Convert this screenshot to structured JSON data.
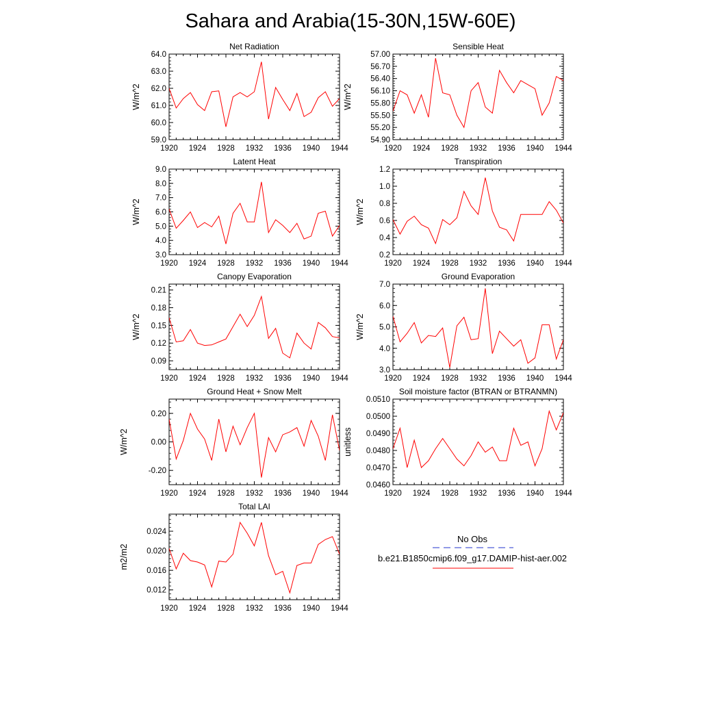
{
  "page": {
    "title": "Sahara and Arabia(15-30N,15W-60E)"
  },
  "chart_data": [
    {
      "type": "line",
      "title": "Net Radiation",
      "ylabel": "W/m^2",
      "xlabel": "",
      "xlim": [
        1920,
        1944
      ],
      "ylim": [
        59.0,
        64.0
      ],
      "xticks": [
        1920,
        1924,
        1928,
        1932,
        1936,
        1940,
        1944
      ],
      "yticks": [
        59.0,
        60.0,
        61.0,
        62.0,
        63.0,
        64.0
      ],
      "ytick_labels": [
        "59.0",
        "60.0",
        "61.0",
        "62.0",
        "63.0",
        "64.0"
      ],
      "grid": false,
      "x": [
        1920,
        1921,
        1922,
        1923,
        1924,
        1925,
        1926,
        1927,
        1928,
        1929,
        1930,
        1931,
        1932,
        1933,
        1934,
        1935,
        1936,
        1937,
        1938,
        1939,
        1940,
        1941,
        1942,
        1943,
        1944
      ],
      "series": [
        {
          "color": "#ff0000",
          "values": [
            62.0,
            60.85,
            61.4,
            61.75,
            61.05,
            60.7,
            61.8,
            61.85,
            59.75,
            61.5,
            61.75,
            61.5,
            61.8,
            63.55,
            60.2,
            62.05,
            61.35,
            60.7,
            61.7,
            60.35,
            60.6,
            61.45,
            61.8,
            60.95,
            61.4
          ]
        }
      ]
    },
    {
      "type": "line",
      "title": "Sensible Heat",
      "ylabel": "W/m^2",
      "xlabel": "",
      "xlim": [
        1920,
        1944
      ],
      "ylim": [
        54.9,
        57.0
      ],
      "xticks": [
        1920,
        1924,
        1928,
        1932,
        1936,
        1940,
        1944
      ],
      "yticks": [
        54.9,
        55.2,
        55.5,
        55.8,
        56.1,
        56.4,
        56.7,
        57.0
      ],
      "ytick_labels": [
        "54.90",
        "55.20",
        "55.50",
        "55.80",
        "56.10",
        "56.40",
        "56.70",
        "57.00"
      ],
      "grid": false,
      "x": [
        1920,
        1921,
        1922,
        1923,
        1924,
        1925,
        1926,
        1927,
        1928,
        1929,
        1930,
        1931,
        1932,
        1933,
        1934,
        1935,
        1936,
        1937,
        1938,
        1939,
        1940,
        1941,
        1942,
        1943,
        1944
      ],
      "series": [
        {
          "color": "#ff0000",
          "values": [
            55.6,
            56.1,
            56.0,
            55.55,
            56.0,
            55.45,
            56.9,
            56.05,
            56.0,
            55.5,
            55.2,
            56.1,
            56.3,
            55.7,
            55.55,
            56.6,
            56.3,
            56.05,
            56.35,
            56.25,
            56.15,
            55.5,
            55.8,
            56.45,
            56.35
          ]
        }
      ]
    },
    {
      "type": "line",
      "title": "Latent Heat",
      "ylabel": "W/m^2",
      "xlabel": "",
      "xlim": [
        1920,
        1944
      ],
      "ylim": [
        3.0,
        9.0
      ],
      "xticks": [
        1920,
        1924,
        1928,
        1932,
        1936,
        1940,
        1944
      ],
      "yticks": [
        3.0,
        4.0,
        5.0,
        6.0,
        7.0,
        8.0,
        9.0
      ],
      "ytick_labels": [
        "3.0",
        "4.0",
        "5.0",
        "6.0",
        "7.0",
        "8.0",
        "9.0"
      ],
      "grid": false,
      "x": [
        1920,
        1921,
        1922,
        1923,
        1924,
        1925,
        1926,
        1927,
        1928,
        1929,
        1930,
        1931,
        1932,
        1933,
        1934,
        1935,
        1936,
        1937,
        1938,
        1939,
        1940,
        1941,
        1942,
        1943,
        1944
      ],
      "series": [
        {
          "color": "#ff0000",
          "values": [
            6.2,
            4.85,
            5.4,
            6.0,
            4.9,
            5.25,
            4.95,
            5.7,
            3.75,
            5.9,
            6.6,
            5.3,
            5.3,
            8.1,
            4.55,
            5.45,
            5.05,
            4.55,
            5.2,
            4.1,
            4.3,
            5.9,
            6.05,
            4.3,
            5.05
          ]
        }
      ]
    },
    {
      "type": "line",
      "title": "Transpiration",
      "ylabel": "W/m^2",
      "xlabel": "",
      "xlim": [
        1920,
        1944
      ],
      "ylim": [
        0.2,
        1.2
      ],
      "xticks": [
        1920,
        1924,
        1928,
        1932,
        1936,
        1940,
        1944
      ],
      "yticks": [
        0.2,
        0.4,
        0.6,
        0.8,
        1.0,
        1.2
      ],
      "ytick_labels": [
        "0.2",
        "0.4",
        "0.6",
        "0.8",
        "1.0",
        "1.2"
      ],
      "grid": false,
      "x": [
        1920,
        1921,
        1922,
        1923,
        1924,
        1925,
        1926,
        1927,
        1928,
        1929,
        1930,
        1931,
        1932,
        1933,
        1934,
        1935,
        1936,
        1937,
        1938,
        1939,
        1940,
        1941,
        1942,
        1943,
        1944
      ],
      "series": [
        {
          "color": "#ff0000",
          "values": [
            0.61,
            0.44,
            0.59,
            0.65,
            0.55,
            0.51,
            0.33,
            0.61,
            0.55,
            0.63,
            0.94,
            0.77,
            0.67,
            1.1,
            0.71,
            0.52,
            0.49,
            0.36,
            0.67,
            0.67,
            0.67,
            0.67,
            0.82,
            0.72,
            0.57
          ]
        }
      ]
    },
    {
      "type": "line",
      "title": "Canopy Evaporation",
      "ylabel": "W/m^2",
      "xlabel": "",
      "xlim": [
        1920,
        1944
      ],
      "ylim": [
        0.075,
        0.22
      ],
      "xticks": [
        1920,
        1924,
        1928,
        1932,
        1936,
        1940,
        1944
      ],
      "yticks": [
        0.09,
        0.12,
        0.15,
        0.18,
        0.21
      ],
      "ytick_labels": [
        "0.09",
        "0.12",
        "0.15",
        "0.18",
        "0.21"
      ],
      "grid": false,
      "x": [
        1920,
        1921,
        1922,
        1923,
        1924,
        1925,
        1926,
        1927,
        1928,
        1929,
        1930,
        1931,
        1932,
        1933,
        1934,
        1935,
        1936,
        1937,
        1938,
        1939,
        1940,
        1941,
        1942,
        1943,
        1944
      ],
      "series": [
        {
          "color": "#ff0000",
          "values": [
            0.163,
            0.122,
            0.124,
            0.143,
            0.12,
            0.116,
            0.117,
            0.122,
            0.127,
            0.148,
            0.169,
            0.148,
            0.167,
            0.199,
            0.128,
            0.145,
            0.103,
            0.095,
            0.137,
            0.12,
            0.11,
            0.155,
            0.146,
            0.131,
            0.129
          ]
        }
      ]
    },
    {
      "type": "line",
      "title": "Ground Evaporation",
      "ylabel": "W/m^2",
      "xlabel": "",
      "xlim": [
        1920,
        1944
      ],
      "ylim": [
        3.0,
        7.0
      ],
      "xticks": [
        1920,
        1924,
        1928,
        1932,
        1936,
        1940,
        1944
      ],
      "yticks": [
        3.0,
        4.0,
        5.0,
        6.0,
        7.0
      ],
      "ytick_labels": [
        "3.0",
        "4.0",
        "5.0",
        "6.0",
        "7.0"
      ],
      "grid": false,
      "x": [
        1920,
        1921,
        1922,
        1923,
        1924,
        1925,
        1926,
        1927,
        1928,
        1929,
        1930,
        1931,
        1932,
        1933,
        1934,
        1935,
        1936,
        1937,
        1938,
        1939,
        1940,
        1941,
        1942,
        1943,
        1944
      ],
      "series": [
        {
          "color": "#ff0000",
          "values": [
            5.5,
            4.3,
            4.7,
            5.2,
            4.25,
            4.6,
            4.55,
            4.95,
            3.1,
            5.05,
            5.45,
            4.4,
            4.45,
            6.8,
            3.75,
            4.8,
            4.45,
            4.1,
            4.4,
            3.3,
            3.55,
            5.1,
            5.1,
            3.5,
            4.4
          ]
        }
      ]
    },
    {
      "type": "line",
      "title": "Ground Heat + Snow Melt",
      "ylabel": "W/m^2",
      "xlabel": "",
      "xlim": [
        1920,
        1944
      ],
      "ylim": [
        -0.3,
        0.3
      ],
      "xticks": [
        1920,
        1924,
        1928,
        1932,
        1936,
        1940,
        1944
      ],
      "yticks": [
        -0.2,
        0.0,
        0.2
      ],
      "ytick_labels": [
        "-0.20",
        "0.00",
        "0.20"
      ],
      "grid": false,
      "x": [
        1920,
        1921,
        1922,
        1923,
        1924,
        1925,
        1926,
        1927,
        1928,
        1929,
        1930,
        1931,
        1932,
        1933,
        1934,
        1935,
        1936,
        1937,
        1938,
        1939,
        1940,
        1941,
        1942,
        1943,
        1944
      ],
      "series": [
        {
          "color": "#ff0000",
          "values": [
            0.16,
            -0.12,
            0.01,
            0.2,
            0.09,
            0.02,
            -0.13,
            0.16,
            -0.07,
            0.11,
            -0.02,
            0.1,
            0.2,
            -0.25,
            0.03,
            -0.07,
            0.05,
            0.07,
            0.1,
            -0.03,
            0.15,
            0.04,
            -0.13,
            0.19,
            -0.06
          ]
        }
      ]
    },
    {
      "type": "line",
      "title": "Soil moisture factor (BTRAN or BTRANMN)",
      "ylabel": "unitless",
      "xlabel": "",
      "xlim": [
        1920,
        1944
      ],
      "ylim": [
        0.046,
        0.051
      ],
      "xticks": [
        1920,
        1924,
        1928,
        1932,
        1936,
        1940,
        1944
      ],
      "yticks": [
        0.046,
        0.047,
        0.048,
        0.049,
        0.05,
        0.051
      ],
      "ytick_labels": [
        "0.0460",
        "0.0470",
        "0.0480",
        "0.0490",
        "0.0500",
        "0.0510"
      ],
      "grid": false,
      "x": [
        1920,
        1921,
        1922,
        1923,
        1924,
        1925,
        1926,
        1927,
        1928,
        1929,
        1930,
        1931,
        1932,
        1933,
        1934,
        1935,
        1936,
        1937,
        1938,
        1939,
        1940,
        1941,
        1942,
        1943,
        1944
      ],
      "series": [
        {
          "color": "#ff0000",
          "values": [
            0.0481,
            0.0493,
            0.047,
            0.0486,
            0.047,
            0.0474,
            0.0481,
            0.0487,
            0.0481,
            0.0475,
            0.0471,
            0.0477,
            0.0485,
            0.0479,
            0.0482,
            0.0474,
            0.0474,
            0.0493,
            0.0483,
            0.0485,
            0.0471,
            0.0481,
            0.0503,
            0.0492,
            0.0502
          ]
        }
      ]
    },
    {
      "type": "line",
      "title": "Total LAI",
      "ylabel": "m2/m2",
      "xlabel": "",
      "xlim": [
        1920,
        1944
      ],
      "ylim": [
        0.01,
        0.0275
      ],
      "xticks": [
        1920,
        1924,
        1928,
        1932,
        1936,
        1940,
        1944
      ],
      "yticks": [
        0.012,
        0.016,
        0.02,
        0.024
      ],
      "ytick_labels": [
        "0.012",
        "0.016",
        "0.020",
        "0.024"
      ],
      "grid": false,
      "x": [
        1920,
        1921,
        1922,
        1923,
        1924,
        1925,
        1926,
        1927,
        1928,
        1929,
        1930,
        1931,
        1932,
        1933,
        1934,
        1935,
        1936,
        1937,
        1938,
        1939,
        1940,
        1941,
        1942,
        1943,
        1944
      ],
      "series": [
        {
          "color": "#ff0000",
          "values": [
            0.0205,
            0.0163,
            0.0195,
            0.018,
            0.0177,
            0.0171,
            0.0126,
            0.0179,
            0.0177,
            0.0193,
            0.0258,
            0.0236,
            0.021,
            0.0258,
            0.019,
            0.0151,
            0.0158,
            0.0114,
            0.017,
            0.0175,
            0.0175,
            0.0213,
            0.0223,
            0.0229,
            0.0193
          ]
        }
      ]
    }
  ],
  "legend": {
    "items": [
      {
        "label": "No Obs",
        "color": "#2233cc",
        "dash": true
      },
      {
        "label": "b.e21.B1850cmip6.f09_g17.DAMIP-hist-aer.002",
        "color": "#ff0000",
        "dash": false
      }
    ]
  }
}
